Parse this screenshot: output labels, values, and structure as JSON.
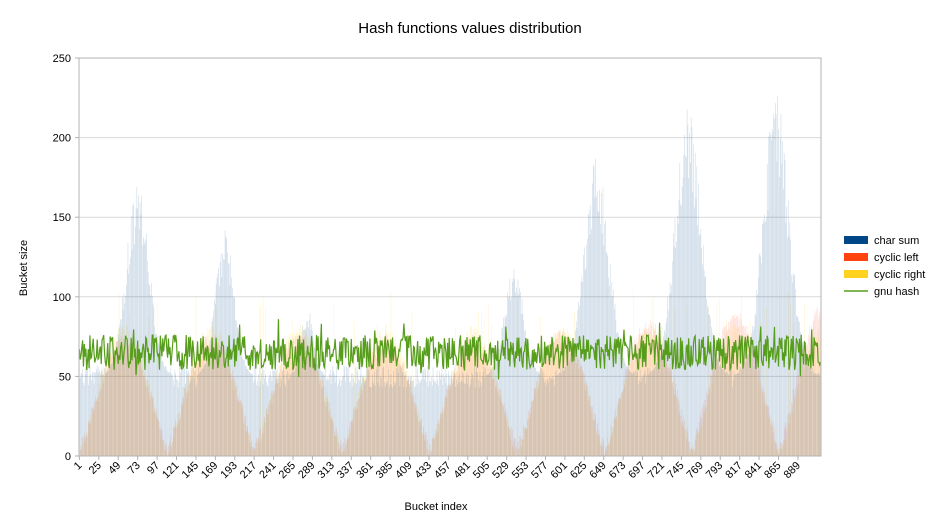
{
  "chart_data": {
    "type": "bar",
    "title": "Hash functions values distribution",
    "xlabel": "Bucket index",
    "ylabel": "Bucket size",
    "ylim": [
      0,
      250
    ],
    "yticks": [
      0,
      50,
      100,
      150,
      200,
      250
    ],
    "x_start": 1,
    "x_end": 917,
    "x_tick_step": 24,
    "x_tick_labels": [
      "1",
      "25",
      "49",
      "73",
      "97",
      "121",
      "145",
      "169",
      "193",
      "217",
      "241",
      "265",
      "289",
      "313",
      "337",
      "361",
      "385",
      "409",
      "433",
      "457",
      "481",
      "505",
      "529",
      "553",
      "577",
      "601",
      "625",
      "649",
      "673",
      "697",
      "721",
      "745",
      "769",
      "793",
      "817",
      "841",
      "865",
      "889"
    ],
    "grid": {
      "horizontal": true,
      "vertical": false
    },
    "legend_position": "right",
    "series": [
      {
        "name": "char sum",
        "render": "bar",
        "color": "#004586",
        "profile": {
          "baseline": 50,
          "peaks": [
            {
              "center": 73,
              "height": 170,
              "halfwidth": 22
            },
            {
              "center": 181,
              "height": 140,
              "halfwidth": 18
            },
            {
              "center": 283,
              "height": 92,
              "halfwidth": 12
            },
            {
              "center": 538,
              "height": 120,
              "halfwidth": 18
            },
            {
              "center": 640,
              "height": 185,
              "halfwidth": 24
            },
            {
              "center": 753,
              "height": 215,
              "halfwidth": 25
            },
            {
              "center": 862,
              "height": 225,
              "halfwidth": 25
            }
          ]
        }
      },
      {
        "name": "cyclic left",
        "render": "bar",
        "color": "#ff420e",
        "profile": {
          "period": 108,
          "phase": 2,
          "min": 5,
          "max": 72,
          "max_growth_late": 20
        }
      },
      {
        "name": "cyclic right",
        "render": "bar",
        "color": "#ffd320",
        "profile": {
          "period": 108,
          "phase": 2,
          "min": 3,
          "max": 78,
          "occasional_max": 105
        }
      },
      {
        "name": "gnu hash",
        "render": "line",
        "color": "#579d1c",
        "profile": {
          "mean": 65,
          "min": 42,
          "max": 86
        }
      }
    ]
  }
}
